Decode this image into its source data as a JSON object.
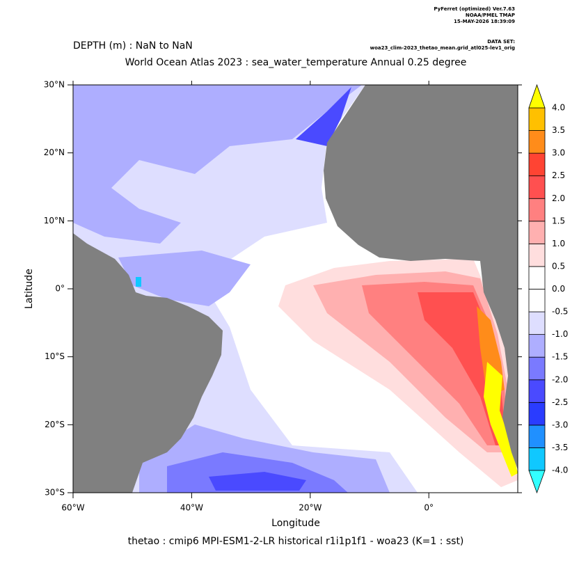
{
  "header": {
    "software": "PyFerret (optimized) Ver.7.63",
    "org": "NOAA/PMEL TMAP",
    "date": "15-MAY-2026 18:39:09",
    "dataset_label": "DATA SET:",
    "dataset": "woa23_clim-2023_thetao_mean.grid_atl025-lev1_orig"
  },
  "chart_data": {
    "type": "map",
    "subtitle": "DEPTH (m) : NaN to NaN",
    "title": "World Ocean Atlas 2023 : sea_water_temperature Annual  0.25 degree",
    "x_label": "Longitude",
    "y_label": "Latitude",
    "footer": "thetao : cmip6 MPI-ESM1-2-LR historical r1i1p1f1 - woa23  (K=1 : sst)",
    "xlim": [
      -60,
      15
    ],
    "ylim": [
      -30,
      30
    ],
    "xticks": [
      {
        "value": -60,
        "label": "60°W"
      },
      {
        "value": -40,
        "label": "40°W"
      },
      {
        "value": -20,
        "label": "20°W"
      },
      {
        "value": 0,
        "label": "0°"
      }
    ],
    "yticks": [
      {
        "value": 30,
        "label": "30°N"
      },
      {
        "value": 20,
        "label": "20°N"
      },
      {
        "value": 10,
        "label": "10°N"
      },
      {
        "value": 0,
        "label": "0°"
      },
      {
        "value": -10,
        "label": "10°S"
      },
      {
        "value": -20,
        "label": "20°S"
      },
      {
        "value": -30,
        "label": "30°S"
      }
    ],
    "colorbar": {
      "levels": [
        {
          "value": -4,
          "label": "-4.0"
        },
        {
          "value": -3.5,
          "label": "-3.5"
        },
        {
          "value": -3,
          "label": "-3.0"
        },
        {
          "value": -2.5,
          "label": "-2.5"
        },
        {
          "value": -2,
          "label": "-2.0"
        },
        {
          "value": -1.5,
          "label": "-1.5"
        },
        {
          "value": -1,
          "label": "-1.0"
        },
        {
          "value": -0.5,
          "label": "-0.5"
        },
        {
          "value": 0,
          "label": "0.0"
        },
        {
          "value": 0.5,
          "label": "0.5"
        },
        {
          "value": 1,
          "label": "1.0"
        },
        {
          "value": 1.5,
          "label": "1.5"
        },
        {
          "value": 2,
          "label": "2.0"
        },
        {
          "value": 2.5,
          "label": "2.5"
        },
        {
          "value": 3,
          "label": "3.0"
        },
        {
          "value": 3.5,
          "label": "3.5"
        },
        {
          "value": 4,
          "label": "4.0"
        }
      ],
      "colors": [
        "#33ffff",
        "#10c8ff",
        "#2090ff",
        "#2a3cff",
        "#4a4aff",
        "#7a7aff",
        "#aeaeff",
        "#dedeff",
        "#ffffff",
        "#ffffff",
        "#ffdede",
        "#ffb0b0",
        "#ff8080",
        "#ff5050",
        "#ff4433",
        "#ff8c1a",
        "#ffc000",
        "#ffff00"
      ]
    }
  }
}
